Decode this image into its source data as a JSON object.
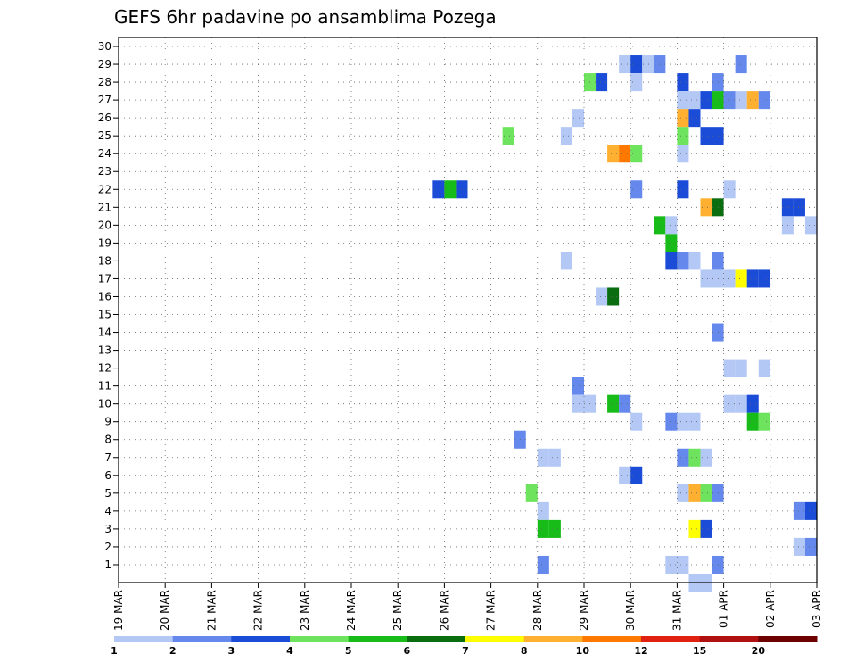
{
  "chart_data": {
    "type": "heatmap",
    "title": "GEFS 6hr padavine po ansamblima Pozega",
    "xlabel": "",
    "ylabel": "",
    "ylim": [
      0,
      30
    ],
    "y_ticks": [
      1,
      2,
      3,
      4,
      5,
      6,
      7,
      8,
      9,
      10,
      11,
      12,
      13,
      14,
      15,
      16,
      17,
      18,
      19,
      20,
      21,
      22,
      23,
      24,
      25,
      26,
      27,
      28,
      29,
      30
    ],
    "x_tick_labels": [
      "19 MAR",
      "20 MAR",
      "21 MAR",
      "22 MAR",
      "23 MAR",
      "24 MAR",
      "25 MAR",
      "26 MAR",
      "27 MAR",
      "28 MAR",
      "29 MAR",
      "30 MAR",
      "31 MAR",
      "01 APR",
      "02 APR",
      "03 APR"
    ],
    "x_step_hours": 6,
    "grid": true,
    "legend": "bottom",
    "colorbar": {
      "labels": [
        "1",
        "2",
        "3",
        "4",
        "5",
        "6",
        "7",
        "8",
        "10",
        "12",
        "15",
        "20"
      ],
      "colors": [
        "#b4c8f5",
        "#6488ec",
        "#1a4cd8",
        "#6ee45e",
        "#18bc18",
        "#0a6e10",
        "#ffff00",
        "#ffb030",
        "#ff7800",
        "#e02010",
        "#b01010",
        "#6e0000"
      ]
    },
    "cells": [
      {
        "member": 29,
        "day": 10.75,
        "color": "#b4c8f5"
      },
      {
        "member": 29,
        "day": 11.0,
        "color": "#1a4cd8"
      },
      {
        "member": 29,
        "day": 11.25,
        "color": "#b4c8f5"
      },
      {
        "member": 29,
        "day": 11.5,
        "color": "#6488ec"
      },
      {
        "member": 29,
        "day": 13.25,
        "color": "#6488ec"
      },
      {
        "member": 28,
        "day": 10.0,
        "color": "#6ee45e"
      },
      {
        "member": 28,
        "day": 10.25,
        "color": "#1a4cd8"
      },
      {
        "member": 28,
        "day": 11.0,
        "color": "#b4c8f5"
      },
      {
        "member": 28,
        "day": 12.0,
        "color": "#1a4cd8"
      },
      {
        "member": 28,
        "day": 12.75,
        "color": "#6488ec"
      },
      {
        "member": 27,
        "day": 12.0,
        "color": "#b4c8f5"
      },
      {
        "member": 27,
        "day": 12.25,
        "color": "#b4c8f5"
      },
      {
        "member": 27,
        "day": 12.5,
        "color": "#1a4cd8"
      },
      {
        "member": 27,
        "day": 12.75,
        "color": "#18bc18"
      },
      {
        "member": 27,
        "day": 13.0,
        "color": "#6488ec"
      },
      {
        "member": 27,
        "day": 13.25,
        "color": "#b4c8f5"
      },
      {
        "member": 27,
        "day": 13.5,
        "color": "#ffb030"
      },
      {
        "member": 27,
        "day": 13.75,
        "color": "#6488ec"
      },
      {
        "member": 26,
        "day": 9.75,
        "color": "#b4c8f5"
      },
      {
        "member": 26,
        "day": 12.0,
        "color": "#ffb030"
      },
      {
        "member": 26,
        "day": 12.25,
        "color": "#1a4cd8"
      },
      {
        "member": 25,
        "day": 8.25,
        "color": "#6ee45e"
      },
      {
        "member": 25,
        "day": 9.5,
        "color": "#b4c8f5"
      },
      {
        "member": 25,
        "day": 12.0,
        "color": "#6ee45e"
      },
      {
        "member": 25,
        "day": 12.5,
        "color": "#1a4cd8"
      },
      {
        "member": 25,
        "day": 12.75,
        "color": "#1a4cd8"
      },
      {
        "member": 24,
        "day": 10.5,
        "color": "#ffb030"
      },
      {
        "member": 24,
        "day": 10.75,
        "color": "#ff7800"
      },
      {
        "member": 24,
        "day": 11.0,
        "color": "#6ee45e"
      },
      {
        "member": 24,
        "day": 12.0,
        "color": "#b4c8f5"
      },
      {
        "member": 22,
        "day": 6.75,
        "color": "#1a4cd8"
      },
      {
        "member": 22,
        "day": 7.0,
        "color": "#18bc18"
      },
      {
        "member": 22,
        "day": 7.25,
        "color": "#1a4cd8"
      },
      {
        "member": 22,
        "day": 11.0,
        "color": "#6488ec"
      },
      {
        "member": 22,
        "day": 12.0,
        "color": "#1a4cd8"
      },
      {
        "member": 22,
        "day": 13.0,
        "color": "#b4c8f5"
      },
      {
        "member": 21,
        "day": 12.5,
        "color": "#ffb030"
      },
      {
        "member": 21,
        "day": 12.75,
        "color": "#0a6e10"
      },
      {
        "member": 21,
        "day": 14.25,
        "color": "#1a4cd8"
      },
      {
        "member": 21,
        "day": 14.5,
        "color": "#1a4cd8"
      },
      {
        "member": 20,
        "day": 11.5,
        "color": "#18bc18"
      },
      {
        "member": 20,
        "day": 11.75,
        "color": "#b4c8f5"
      },
      {
        "member": 20,
        "day": 14.25,
        "color": "#b4c8f5"
      },
      {
        "member": 20,
        "day": 14.75,
        "color": "#b4c8f5"
      },
      {
        "member": 19,
        "day": 11.75,
        "color": "#18bc18"
      },
      {
        "member": 18,
        "day": 11.75,
        "color": "#1a4cd8"
      },
      {
        "member": 18,
        "day": 12.0,
        "color": "#6488ec"
      },
      {
        "member": 18,
        "day": 12.25,
        "color": "#b4c8f5"
      },
      {
        "member": 18,
        "day": 12.75,
        "color": "#6488ec"
      },
      {
        "member": 18,
        "day": 9.5,
        "color": "#b4c8f5"
      },
      {
        "member": 17,
        "day": 12.5,
        "color": "#b4c8f5"
      },
      {
        "member": 17,
        "day": 12.75,
        "color": "#b4c8f5"
      },
      {
        "member": 17,
        "day": 13.0,
        "color": "#b4c8f5"
      },
      {
        "member": 17,
        "day": 13.25,
        "color": "#ffff00"
      },
      {
        "member": 17,
        "day": 13.5,
        "color": "#1a4cd8"
      },
      {
        "member": 17,
        "day": 13.75,
        "color": "#1a4cd8"
      },
      {
        "member": 16,
        "day": 10.25,
        "color": "#b4c8f5"
      },
      {
        "member": 16,
        "day": 10.5,
        "color": "#0a6e10"
      },
      {
        "member": 14,
        "day": 12.75,
        "color": "#6488ec"
      },
      {
        "member": 12,
        "day": 13.0,
        "color": "#b4c8f5"
      },
      {
        "member": 12,
        "day": 13.25,
        "color": "#b4c8f5"
      },
      {
        "member": 12,
        "day": 13.75,
        "color": "#b4c8f5"
      },
      {
        "member": 11,
        "day": 9.75,
        "color": "#6488ec"
      },
      {
        "member": 10,
        "day": 9.75,
        "color": "#b4c8f5"
      },
      {
        "member": 10,
        "day": 10.0,
        "color": "#b4c8f5"
      },
      {
        "member": 10,
        "day": 10.5,
        "color": "#18bc18"
      },
      {
        "member": 10,
        "day": 10.75,
        "color": "#6488ec"
      },
      {
        "member": 10,
        "day": 13.0,
        "color": "#b4c8f5"
      },
      {
        "member": 10,
        "day": 13.25,
        "color": "#b4c8f5"
      },
      {
        "member": 10,
        "day": 13.5,
        "color": "#1a4cd8"
      },
      {
        "member": 9,
        "day": 11.0,
        "color": "#b4c8f5"
      },
      {
        "member": 9,
        "day": 11.75,
        "color": "#6488ec"
      },
      {
        "member": 9,
        "day": 12.0,
        "color": "#b4c8f5"
      },
      {
        "member": 9,
        "day": 12.25,
        "color": "#b4c8f5"
      },
      {
        "member": 9,
        "day": 13.5,
        "color": "#18bc18"
      },
      {
        "member": 9,
        "day": 13.75,
        "color": "#6ee45e"
      },
      {
        "member": 8,
        "day": 8.5,
        "color": "#6488ec"
      },
      {
        "member": 7,
        "day": 9.0,
        "color": "#b4c8f5"
      },
      {
        "member": 7,
        "day": 9.25,
        "color": "#b4c8f5"
      },
      {
        "member": 7,
        "day": 12.0,
        "color": "#6488ec"
      },
      {
        "member": 7,
        "day": 12.25,
        "color": "#6ee45e"
      },
      {
        "member": 7,
        "day": 12.5,
        "color": "#b4c8f5"
      },
      {
        "member": 6,
        "day": 10.75,
        "color": "#b4c8f5"
      },
      {
        "member": 6,
        "day": 11.0,
        "color": "#1a4cd8"
      },
      {
        "member": 6,
        "day": 15.0,
        "color": "#1a4cd8"
      },
      {
        "member": 5,
        "day": 8.75,
        "color": "#6ee45e"
      },
      {
        "member": 5,
        "day": 12.0,
        "color": "#b4c8f5"
      },
      {
        "member": 5,
        "day": 12.25,
        "color": "#ffb030"
      },
      {
        "member": 5,
        "day": 12.5,
        "color": "#6ee45e"
      },
      {
        "member": 5,
        "day": 12.75,
        "color": "#6488ec"
      },
      {
        "member": 4,
        "day": 9.0,
        "color": "#b4c8f5"
      },
      {
        "member": 4,
        "day": 14.5,
        "color": "#6488ec"
      },
      {
        "member": 4,
        "day": 14.75,
        "color": "#1a4cd8"
      },
      {
        "member": 4,
        "day": 15.0,
        "color": "#b4c8f5"
      },
      {
        "member": 3,
        "day": 9.0,
        "color": "#18bc18"
      },
      {
        "member": 3,
        "day": 9.25,
        "color": "#18bc18"
      },
      {
        "member": 3,
        "day": 12.25,
        "color": "#ffff00"
      },
      {
        "member": 3,
        "day": 12.5,
        "color": "#1a4cd8"
      },
      {
        "member": 2,
        "day": 14.5,
        "color": "#b4c8f5"
      },
      {
        "member": 2,
        "day": 14.75,
        "color": "#6488ec"
      },
      {
        "member": 1,
        "day": 9.0,
        "color": "#6488ec"
      },
      {
        "member": 1,
        "day": 11.75,
        "color": "#b4c8f5"
      },
      {
        "member": 1,
        "day": 12.0,
        "color": "#b4c8f5"
      },
      {
        "member": 1,
        "day": 12.75,
        "color": "#6488ec"
      },
      {
        "member": 0,
        "day": 12.25,
        "color": "#b4c8f5"
      },
      {
        "member": 0,
        "day": 12.5,
        "color": "#b4c8f5"
      }
    ]
  }
}
